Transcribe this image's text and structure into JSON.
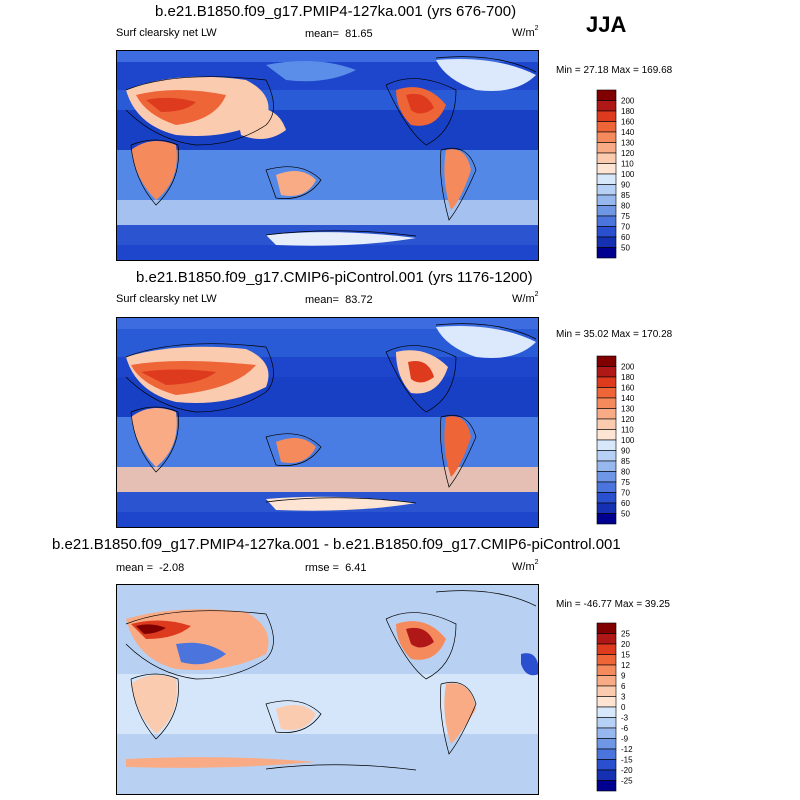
{
  "season": "JJA",
  "panels": [
    {
      "title": "b.e21.B1850.f09_g17.PMIP4-127ka.001 (yrs 676-700)",
      "field": "Surf clearsky net LW",
      "mean_label": "mean=",
      "mean": "81.65",
      "units_base": "W/m",
      "units_exp": "2",
      "minmax": "Min =  27.18 Max = 169.68",
      "bg_color": "#1f4fd6"
    },
    {
      "title": "b.e21.B1850.f09_g17.CMIP6-piControl.001 (yrs 1176-1200)",
      "field": "Surf clearsky net LW",
      "mean_label": "mean=",
      "mean": "83.72",
      "units_base": "W/m",
      "units_exp": "2",
      "minmax": "Min =  35.02 Max = 170.28",
      "bg_color": "#1f4fd6"
    },
    {
      "title": "b.e21.B1850.f09_g17.PMIP4-127ka.001 - b.e21.B1850.f09_g17.CMIP6-piControl.001",
      "mean_label": "mean =",
      "mean": "-2.08",
      "rmse_label": "rmse =",
      "rmse": "6.41",
      "units_base": "W/m",
      "units_exp": "2",
      "minmax": "Min = -46.77 Max =  39.25",
      "bg_color": "#b8d0f3"
    }
  ],
  "chart_data": [
    {
      "type": "heatmap",
      "title": "b.e21.B1850.f09_g17.PMIP4-127ka.001 (yrs 676-700)",
      "variable": "Surf clearsky net LW",
      "units": "W/m2",
      "mean": 81.65,
      "min": 27.18,
      "max": 169.68,
      "colorbar": {
        "levels": [
          "200",
          "180",
          "160",
          "140",
          "130",
          "120",
          "110",
          "100",
          "90",
          "85",
          "80",
          "75",
          "70",
          "60",
          "50"
        ],
        "colors": [
          "#800000",
          "#b01818",
          "#dd3a1e",
          "#ee6538",
          "#f58b5d",
          "#f8ab85",
          "#fbcbaf",
          "#fde4d3",
          "#d8e8fb",
          "#b7d0f5",
          "#97b7ef",
          "#7097e6",
          "#4b75dd",
          "#2a50d0",
          "#1530b0",
          "#000090"
        ]
      }
    },
    {
      "type": "heatmap",
      "title": "b.e21.B1850.f09_g17.CMIP6-piControl.001 (yrs 1176-1200)",
      "variable": "Surf clearsky net LW",
      "units": "W/m2",
      "mean": 83.72,
      "min": 35.02,
      "max": 170.28,
      "colorbar": {
        "levels": [
          "200",
          "180",
          "160",
          "140",
          "130",
          "120",
          "110",
          "100",
          "90",
          "85",
          "80",
          "75",
          "70",
          "60",
          "50"
        ],
        "colors": [
          "#800000",
          "#b01818",
          "#dd3a1e",
          "#ee6538",
          "#f58b5d",
          "#f8ab85",
          "#fbcbaf",
          "#fde4d3",
          "#d8e8fb",
          "#b7d0f5",
          "#97b7ef",
          "#7097e6",
          "#4b75dd",
          "#2a50d0",
          "#1530b0",
          "#000090"
        ]
      }
    },
    {
      "type": "heatmap",
      "title": "b.e21.B1850.f09_g17.PMIP4-127ka.001 - b.e21.B1850.f09_g17.CMIP6-piControl.001",
      "units": "W/m2",
      "mean": -2.08,
      "rmse": 6.41,
      "min": -46.77,
      "max": 39.25,
      "colorbar": {
        "levels": [
          "25",
          "20",
          "15",
          "12",
          "9",
          "6",
          "3",
          "0",
          "-3",
          "-6",
          "-9",
          "-12",
          "-15",
          "-20",
          "-25"
        ],
        "colors": [
          "#800000",
          "#b01818",
          "#dd3a1e",
          "#ee6538",
          "#f58b5d",
          "#f8ab85",
          "#fbcbaf",
          "#fde4d3",
          "#d8e8fb",
          "#b7d0f5",
          "#97b7ef",
          "#7097e6",
          "#4b75dd",
          "#2a50d0",
          "#1530b0",
          "#000090"
        ]
      }
    }
  ]
}
